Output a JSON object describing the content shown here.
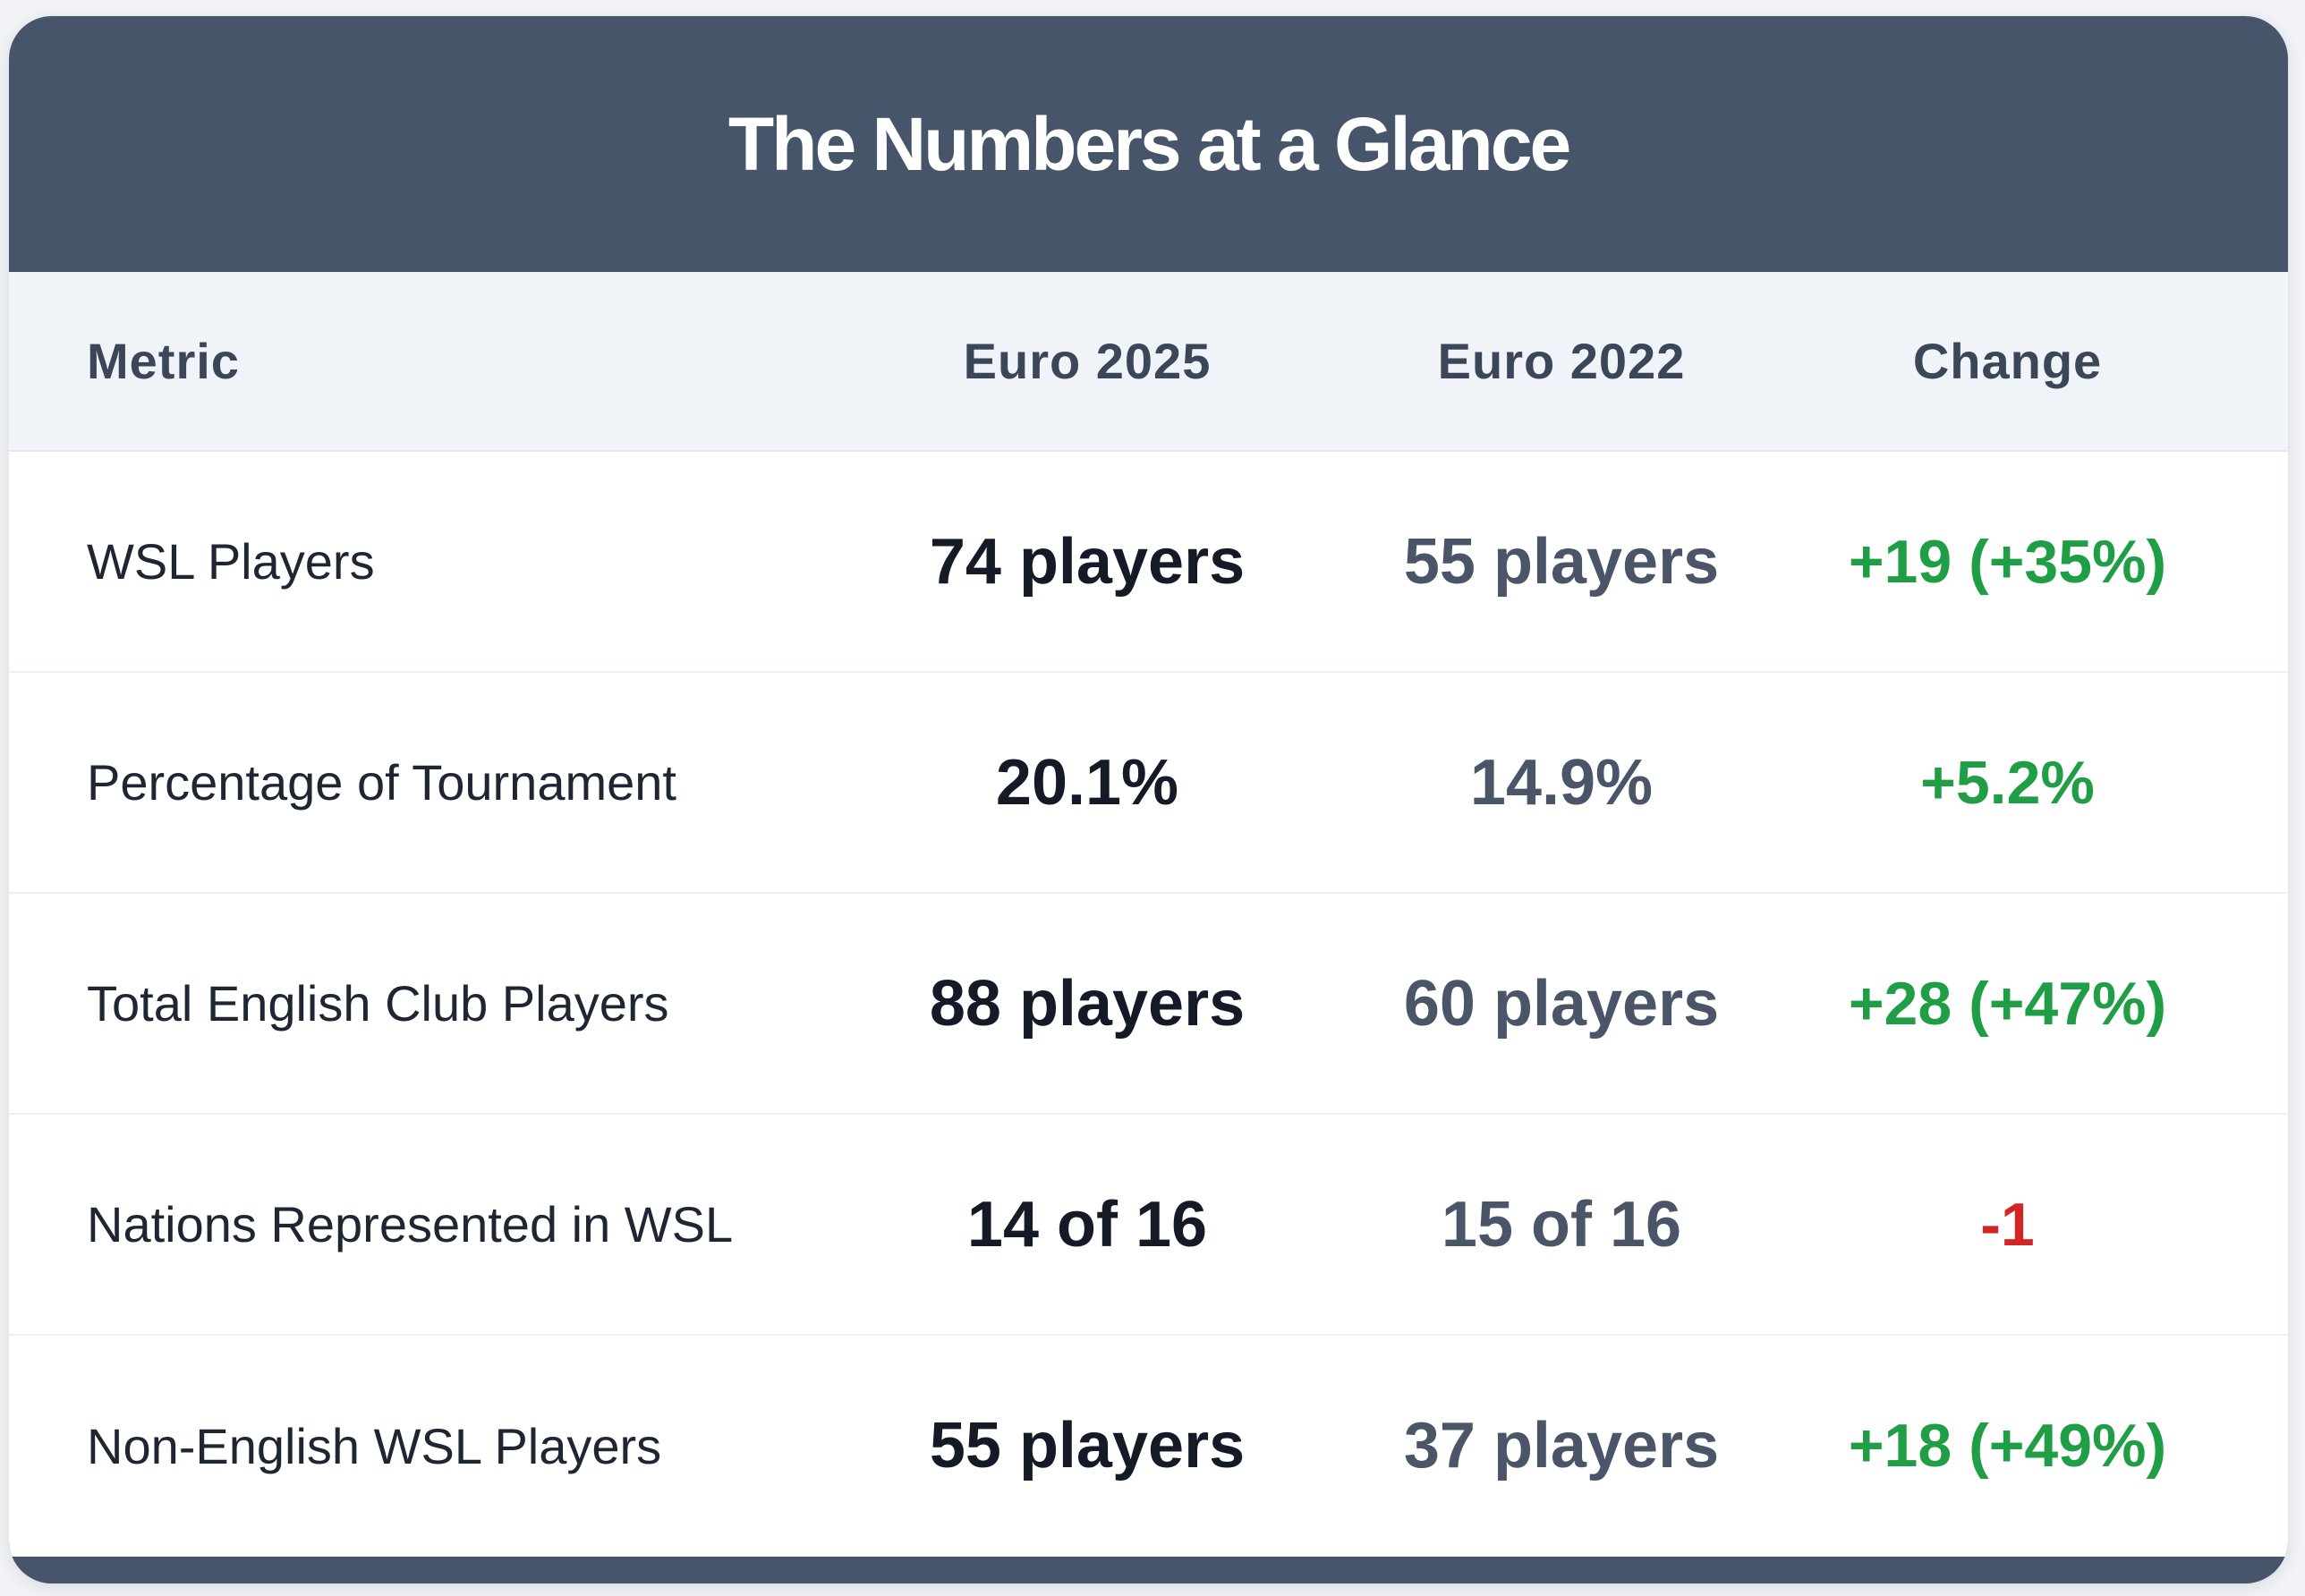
{
  "title": "The Numbers at a Glance",
  "chart_data": {
    "type": "table",
    "title": "The Numbers at a Glance",
    "columns": [
      "Metric",
      "Euro 2025",
      "Euro 2022",
      "Change"
    ],
    "rows": [
      {
        "metric": "WSL Players",
        "euro_2025": "74 players",
        "euro_2022": "55 players",
        "change": "+19 (+35%)",
        "direction": "positive"
      },
      {
        "metric": "Percentage of Tournament",
        "euro_2025": "20.1%",
        "euro_2022": "14.9%",
        "change": "+5.2%",
        "direction": "positive"
      },
      {
        "metric": "Total English Club Players",
        "euro_2025": "88 players",
        "euro_2022": "60 players",
        "change": "+28 (+47%)",
        "direction": "positive"
      },
      {
        "metric": "Nations Represented in WSL",
        "euro_2025": "14 of 16",
        "euro_2022": "15 of 16",
        "change": "-1",
        "direction": "negative"
      },
      {
        "metric": "Non-English WSL Players",
        "euro_2025": "55 players",
        "euro_2022": "37 players",
        "change": "+18 (+49%)",
        "direction": "positive"
      }
    ]
  },
  "colors": {
    "header": "#46556a",
    "positive": "#1f9e45",
    "negative": "#d32525"
  }
}
